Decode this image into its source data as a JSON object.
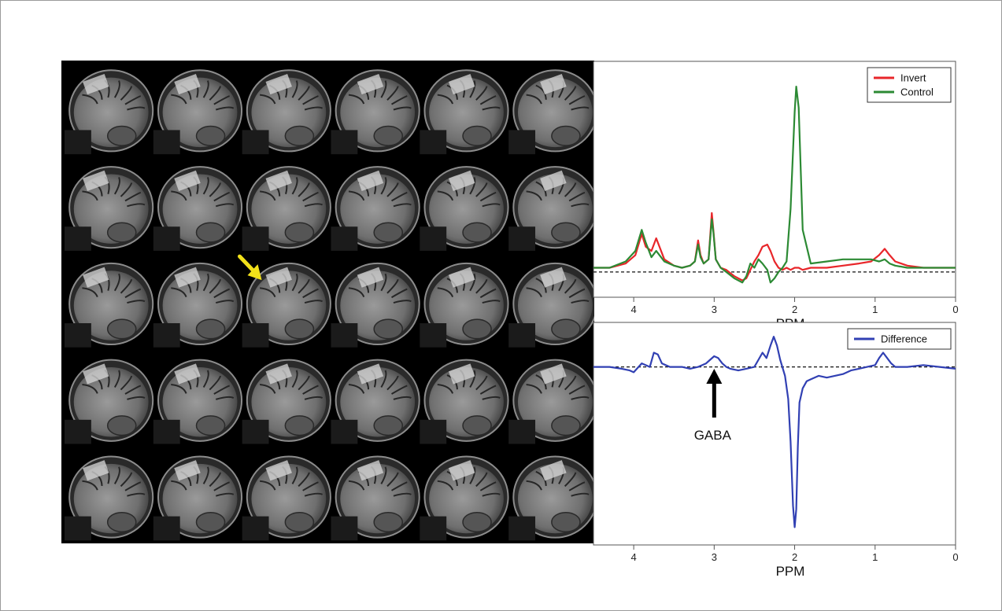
{
  "figure": {
    "mri_grid": {
      "rows": 5,
      "cols": 6,
      "highlight": {
        "row": 3,
        "col": 3
      }
    },
    "arrow_color": "#f2e11a"
  },
  "chart_data": [
    {
      "type": "line",
      "xlabel": "PPM",
      "xlim": [
        4.5,
        0
      ],
      "xticks": [
        4,
        3,
        2,
        1,
        0
      ],
      "ylim": [
        -0.12,
        1.0
      ],
      "baseline": 0,
      "legend": "top-right",
      "series": [
        {
          "name": "Invert",
          "color": "#e8262a",
          "x": [
            4.5,
            4.3,
            4.1,
            3.98,
            3.9,
            3.85,
            3.78,
            3.72,
            3.62,
            3.5,
            3.4,
            3.3,
            3.24,
            3.2,
            3.17,
            3.13,
            3.07,
            3.03,
            3.01,
            2.98,
            2.92,
            2.85,
            2.75,
            2.65,
            2.6,
            2.55,
            2.5,
            2.45,
            2.4,
            2.34,
            2.3,
            2.25,
            2.2,
            2.15,
            2.1,
            2.05,
            2.0,
            1.95,
            1.9,
            1.8,
            1.6,
            1.4,
            1.2,
            1.05,
            0.95,
            0.88,
            0.82,
            0.75,
            0.6,
            0.4,
            0.2,
            0.0
          ],
          "y": [
            0.02,
            0.02,
            0.04,
            0.08,
            0.18,
            0.12,
            0.1,
            0.16,
            0.06,
            0.03,
            0.02,
            0.03,
            0.05,
            0.15,
            0.08,
            0.04,
            0.06,
            0.28,
            0.2,
            0.06,
            0.02,
            0.01,
            -0.02,
            -0.04,
            -0.03,
            0.01,
            0.05,
            0.08,
            0.12,
            0.13,
            0.1,
            0.05,
            0.02,
            0.01,
            0.02,
            0.01,
            0.02,
            0.02,
            0.01,
            0.02,
            0.02,
            0.03,
            0.04,
            0.05,
            0.08,
            0.11,
            0.08,
            0.05,
            0.03,
            0.02,
            0.02,
            0.02
          ]
        },
        {
          "name": "Control",
          "color": "#2c8a34",
          "x": [
            4.5,
            4.3,
            4.1,
            3.98,
            3.9,
            3.85,
            3.78,
            3.72,
            3.62,
            3.5,
            3.4,
            3.3,
            3.24,
            3.2,
            3.17,
            3.13,
            3.07,
            3.03,
            3.01,
            2.98,
            2.92,
            2.85,
            2.75,
            2.65,
            2.6,
            2.55,
            2.5,
            2.45,
            2.4,
            2.34,
            2.3,
            2.25,
            2.2,
            2.15,
            2.1,
            2.05,
            2.0,
            1.98,
            1.95,
            1.9,
            1.8,
            1.6,
            1.4,
            1.2,
            1.05,
            0.95,
            0.88,
            0.82,
            0.75,
            0.6,
            0.4,
            0.2,
            0.0
          ],
          "y": [
            0.02,
            0.02,
            0.05,
            0.1,
            0.2,
            0.14,
            0.07,
            0.1,
            0.05,
            0.03,
            0.02,
            0.03,
            0.05,
            0.13,
            0.07,
            0.04,
            0.06,
            0.25,
            0.19,
            0.06,
            0.02,
            0.0,
            -0.03,
            -0.05,
            -0.02,
            0.04,
            0.02,
            0.06,
            0.04,
            0.01,
            -0.05,
            -0.03,
            0.0,
            0.02,
            0.05,
            0.3,
            0.76,
            0.88,
            0.78,
            0.2,
            0.04,
            0.05,
            0.06,
            0.06,
            0.06,
            0.05,
            0.06,
            0.04,
            0.03,
            0.02,
            0.02,
            0.02,
            0.02
          ]
        }
      ]
    },
    {
      "type": "line",
      "xlabel": "PPM",
      "xlim": [
        4.5,
        0
      ],
      "xticks": [
        4,
        3,
        2,
        1,
        0
      ],
      "ylim": [
        -1.0,
        0.25
      ],
      "baseline": 0,
      "legend": "top-right",
      "annotations": [
        {
          "text": "GABA",
          "x": 3.0
        }
      ],
      "series": [
        {
          "name": "Difference",
          "color": "#3140b3",
          "x": [
            4.5,
            4.3,
            4.15,
            4.05,
            4.0,
            3.9,
            3.8,
            3.75,
            3.7,
            3.65,
            3.55,
            3.4,
            3.3,
            3.2,
            3.1,
            3.05,
            3.0,
            2.95,
            2.9,
            2.85,
            2.8,
            2.7,
            2.6,
            2.5,
            2.45,
            2.4,
            2.35,
            2.3,
            2.26,
            2.22,
            2.18,
            2.12,
            2.08,
            2.05,
            2.02,
            2.0,
            1.98,
            1.96,
            1.94,
            1.9,
            1.85,
            1.8,
            1.7,
            1.6,
            1.5,
            1.4,
            1.3,
            1.2,
            1.1,
            1.0,
            0.95,
            0.9,
            0.85,
            0.8,
            0.75,
            0.6,
            0.4,
            0.2,
            0.0
          ],
          "y": [
            0.0,
            0.0,
            -0.01,
            -0.02,
            -0.03,
            0.02,
            0.0,
            0.08,
            0.07,
            0.02,
            0.0,
            0.0,
            -0.01,
            0.0,
            0.02,
            0.04,
            0.06,
            0.05,
            0.02,
            0.0,
            -0.01,
            -0.02,
            -0.01,
            0.0,
            0.04,
            0.08,
            0.05,
            0.12,
            0.17,
            0.12,
            0.04,
            -0.05,
            -0.18,
            -0.42,
            -0.78,
            -0.9,
            -0.8,
            -0.45,
            -0.2,
            -0.12,
            -0.08,
            -0.07,
            -0.05,
            -0.06,
            -0.05,
            -0.04,
            -0.02,
            -0.01,
            0.0,
            0.01,
            0.05,
            0.08,
            0.05,
            0.02,
            0.0,
            0.0,
            0.01,
            0.0,
            -0.01
          ]
        }
      ]
    }
  ]
}
